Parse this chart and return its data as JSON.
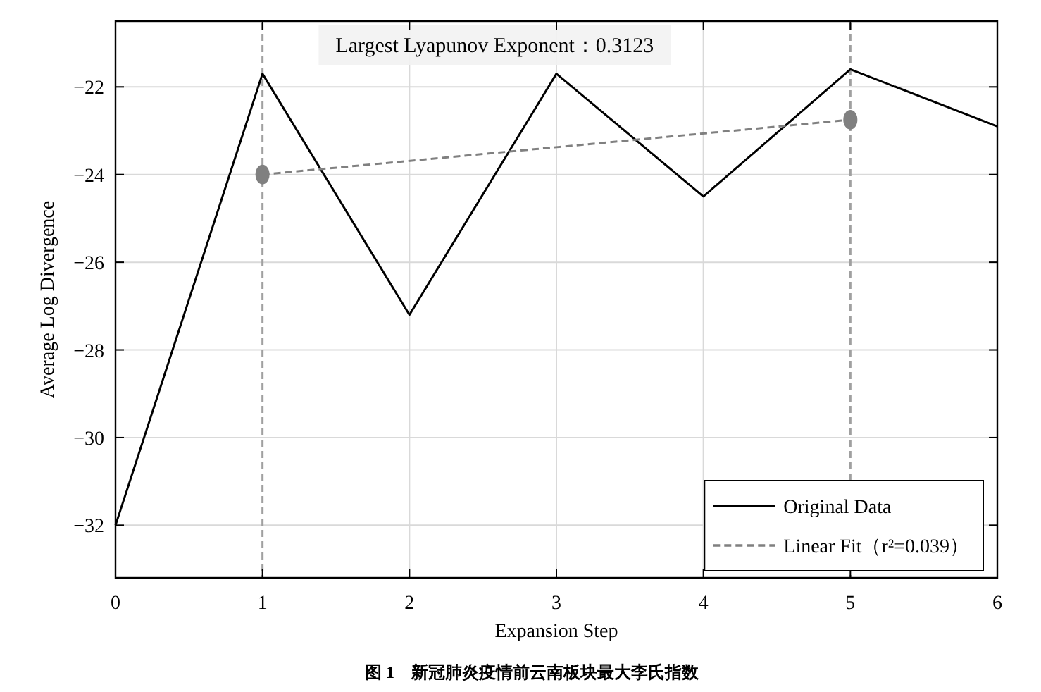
{
  "chart_data": {
    "type": "line",
    "xlabel": "Expansion Step",
    "ylabel": "Average Log Divergence",
    "annotations": [
      "Largest Lyapunov Exponent：0.3123",
      "图 1　新冠肺炎疫情前云南板块最大李氏指数"
    ],
    "series": [
      {
        "name": "Original Data",
        "color": "#000000",
        "x": [
          0,
          1,
          2,
          3,
          4,
          5,
          6
        ],
        "values": [
          -32.0,
          -21.7,
          -27.2,
          -21.7,
          -24.5,
          -21.6,
          -22.9
        ],
        "line_style": "solid",
        "marker": "none"
      },
      {
        "name": "Linear Fit（r²=0.039）",
        "color": "#808080",
        "x": [
          1,
          5
        ],
        "values": [
          -24.0,
          -22.75
        ],
        "line_style": "dashed",
        "marker": "circle"
      }
    ],
    "ref_lines": [
      {
        "axis": "x",
        "value": 1,
        "color": "#a0a0a0",
        "line_style": "dashed"
      },
      {
        "axis": "x",
        "value": 5,
        "color": "#a0a0a0",
        "line_style": "dashed"
      }
    ],
    "xlim": [
      0,
      6
    ],
    "ylim": [
      -33.2,
      -20.5
    ],
    "xticks": [
      0,
      1,
      2,
      3,
      4,
      5,
      6
    ],
    "yticks": [
      -32,
      -30,
      -28,
      -26,
      -24,
      -22
    ],
    "grid": true,
    "legend": "bottom right"
  }
}
